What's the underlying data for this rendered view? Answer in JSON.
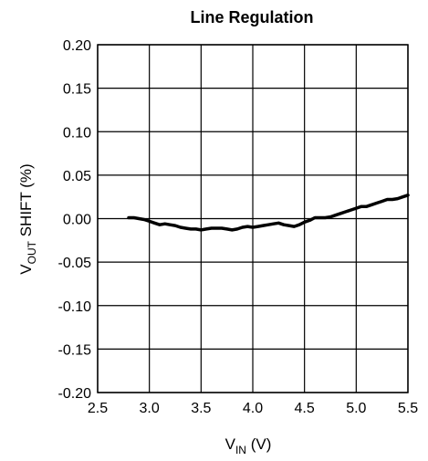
{
  "chart_data": {
    "type": "line",
    "title": "Line Regulation",
    "xlabel": {
      "main": "V",
      "sub": "IN",
      "suffix": " (V)"
    },
    "ylabel": {
      "main": "V",
      "sub": "OUT",
      "suffix": " SHIFT (%)"
    },
    "xlim": [
      2.5,
      5.5
    ],
    "ylim": [
      -0.2,
      0.2
    ],
    "xticks": [
      "2.5",
      "3.0",
      "3.5",
      "4.0",
      "4.5",
      "5.0",
      "5.5"
    ],
    "yticks": [
      "0.20",
      "0.15",
      "0.10",
      "0.05",
      "0.00",
      "-0.05",
      "-0.10",
      "-0.15",
      "-0.20"
    ],
    "grid": true,
    "series": [
      {
        "x": [
          2.8,
          2.85,
          2.9,
          2.95,
          3.0,
          3.05,
          3.1,
          3.15,
          3.2,
          3.25,
          3.3,
          3.35,
          3.4,
          3.45,
          3.5,
          3.55,
          3.6,
          3.65,
          3.7,
          3.75,
          3.8,
          3.85,
          3.9,
          3.95,
          4.0,
          4.05,
          4.1,
          4.15,
          4.2,
          4.25,
          4.3,
          4.35,
          4.4,
          4.45,
          4.5,
          4.55,
          4.6,
          4.65,
          4.7,
          4.75,
          4.8,
          4.85,
          4.9,
          4.95,
          5.0,
          5.05,
          5.1,
          5.15,
          5.2,
          5.25,
          5.3,
          5.35,
          5.4,
          5.45,
          5.5
        ],
        "y": [
          0.001,
          0.001,
          0.0,
          -0.001,
          -0.003,
          -0.005,
          -0.007,
          -0.006,
          -0.007,
          -0.008,
          -0.01,
          -0.011,
          -0.012,
          -0.012,
          -0.013,
          -0.012,
          -0.011,
          -0.011,
          -0.011,
          -0.012,
          -0.013,
          -0.012,
          -0.01,
          -0.009,
          -0.01,
          -0.009,
          -0.008,
          -0.007,
          -0.006,
          -0.005,
          -0.007,
          -0.008,
          -0.009,
          -0.007,
          -0.004,
          -0.002,
          0.001,
          0.001,
          0.001,
          0.002,
          0.004,
          0.006,
          0.008,
          0.01,
          0.012,
          0.014,
          0.014,
          0.016,
          0.018,
          0.02,
          0.022,
          0.022,
          0.023,
          0.025,
          0.027
        ],
        "color": "#000000"
      }
    ]
  }
}
